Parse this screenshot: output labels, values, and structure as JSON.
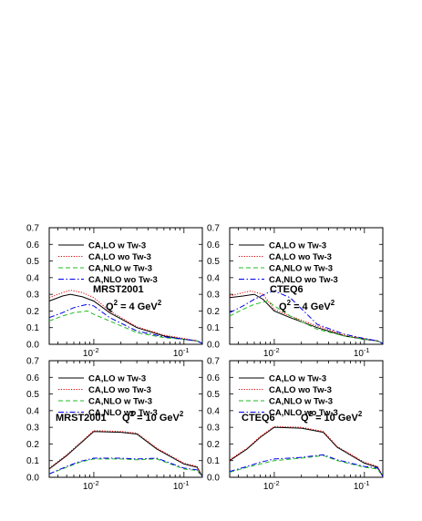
{
  "chart_data": [
    {
      "type": "line",
      "xscale": "log",
      "xlim": [
        0.0032,
        0.16
      ],
      "ylim": [
        0,
        0.7
      ],
      "x_major_ticks": [
        0.01,
        0.1
      ],
      "x_tick_labels": [
        "10",
        "10"
      ],
      "x_tick_exponents": [
        "-2",
        "-1"
      ],
      "y_ticks": [
        0.0,
        0.1,
        0.2,
        0.3,
        0.4,
        0.5,
        0.6,
        0.7
      ],
      "y_tick_labels": [
        "0.0",
        "0.1",
        "0.2",
        "0.3",
        "0.4",
        "0.5",
        "0.6",
        "0.7"
      ],
      "label": "MRST2001",
      "q2_base": "Q",
      "q2_exp": "2",
      "q2_value": "= 4 GeV",
      "q2_unit_exp": "2",
      "legend": [
        "CA,LO w Tw-3",
        "CA,LO wo Tw-3",
        "CA,NLO w Tw-3",
        "CA,NLO wo Tw-3"
      ],
      "series": [
        {
          "name": "CA,LO w Tw-3",
          "color": "#000000",
          "dash": "solid",
          "x": [
            0.0032,
            0.0045,
            0.0055,
            0.0075,
            0.01,
            0.015,
            0.03,
            0.06,
            0.1,
            0.14,
            0.16
          ],
          "y": [
            0.26,
            0.29,
            0.3,
            0.285,
            0.26,
            0.19,
            0.1,
            0.05,
            0.03,
            0.02,
            0.005
          ]
        },
        {
          "name": "CA,LO wo Tw-3",
          "color": "#dd0000",
          "dash": "dotted",
          "x": [
            0.0032,
            0.0045,
            0.0055,
            0.0075,
            0.01,
            0.015,
            0.03,
            0.06,
            0.1,
            0.14,
            0.16
          ],
          "y": [
            0.28,
            0.31,
            0.325,
            0.31,
            0.28,
            0.2,
            0.105,
            0.055,
            0.035,
            0.02,
            0.005
          ]
        },
        {
          "name": "CA,NLO w Tw-3",
          "color": "#22bb22",
          "dash": "dash",
          "x": [
            0.0032,
            0.0045,
            0.006,
            0.0085,
            0.01,
            0.015,
            0.03,
            0.06,
            0.1,
            0.14,
            0.16
          ],
          "y": [
            0.14,
            0.17,
            0.19,
            0.2,
            0.18,
            0.14,
            0.07,
            0.04,
            0.03,
            0.02,
            0.005
          ]
        },
        {
          "name": "CA,NLO wo Tw-3",
          "color": "#0000ee",
          "dash": "dashdot",
          "x": [
            0.0032,
            0.0045,
            0.006,
            0.0085,
            0.01,
            0.015,
            0.03,
            0.06,
            0.1,
            0.14,
            0.16
          ],
          "y": [
            0.16,
            0.19,
            0.22,
            0.24,
            0.23,
            0.16,
            0.08,
            0.045,
            0.03,
            0.02,
            0.005
          ]
        }
      ]
    },
    {
      "type": "line",
      "xscale": "log",
      "xlim": [
        0.0032,
        0.16
      ],
      "ylim": [
        0,
        0.7
      ],
      "x_major_ticks": [
        0.01,
        0.1
      ],
      "x_tick_labels": [
        "10",
        "10"
      ],
      "x_tick_exponents": [
        "-2",
        "-1"
      ],
      "y_ticks": [
        0.0,
        0.1,
        0.2,
        0.3,
        0.4,
        0.5,
        0.6,
        0.7
      ],
      "y_tick_labels": [
        "0.0",
        "0.1",
        "0.2",
        "0.3",
        "0.4",
        "0.5",
        "0.6",
        "0.7"
      ],
      "label": "CTEQ6",
      "q2_base": "Q",
      "q2_exp": "2",
      "q2_value": "= 4 GeV",
      "q2_unit_exp": "2",
      "legend": [
        "CA,LO w Tw-3",
        "CA,LO wo Tw-3",
        "CA,NLO w Tw-3",
        "CA,NLO wo Tw-3"
      ],
      "series": [
        {
          "name": "CA,LO w Tw-3",
          "color": "#000000",
          "dash": "solid",
          "x": [
            0.0032,
            0.0045,
            0.006,
            0.0075,
            0.01,
            0.015,
            0.03,
            0.06,
            0.1,
            0.14,
            0.16
          ],
          "y": [
            0.28,
            0.29,
            0.3,
            0.27,
            0.2,
            0.16,
            0.1,
            0.05,
            0.03,
            0.02,
            0.005
          ]
        },
        {
          "name": "CA,LO wo Tw-3",
          "color": "#dd0000",
          "dash": "dotted",
          "x": [
            0.0032,
            0.0045,
            0.0055,
            0.0075,
            0.01,
            0.015,
            0.03,
            0.06,
            0.1,
            0.14,
            0.16
          ],
          "y": [
            0.29,
            0.31,
            0.32,
            0.3,
            0.21,
            0.17,
            0.11,
            0.055,
            0.035,
            0.02,
            0.005
          ]
        },
        {
          "name": "CA,NLO w Tw-3",
          "color": "#22bb22",
          "dash": "dash",
          "x": [
            0.0032,
            0.0045,
            0.006,
            0.0085,
            0.01,
            0.015,
            0.03,
            0.06,
            0.1,
            0.14,
            0.16
          ],
          "y": [
            0.17,
            0.21,
            0.24,
            0.26,
            0.23,
            0.17,
            0.09,
            0.05,
            0.03,
            0.02,
            0.005
          ]
        },
        {
          "name": "CA,NLO wo Tw-3",
          "color": "#0000ee",
          "dash": "dashdot",
          "x": [
            0.0032,
            0.0045,
            0.006,
            0.0085,
            0.01,
            0.015,
            0.03,
            0.06,
            0.1,
            0.14,
            0.16
          ],
          "y": [
            0.19,
            0.23,
            0.27,
            0.31,
            0.32,
            0.28,
            0.12,
            0.06,
            0.035,
            0.02,
            0.005
          ]
        }
      ]
    },
    {
      "type": "line",
      "xscale": "log",
      "xlim": [
        0.0032,
        0.16
      ],
      "ylim": [
        0,
        0.7
      ],
      "x_major_ticks": [
        0.01,
        0.1
      ],
      "x_tick_labels": [
        "10",
        "10"
      ],
      "x_tick_exponents": [
        "-2",
        "-1"
      ],
      "y_ticks": [
        0.0,
        0.1,
        0.2,
        0.3,
        0.4,
        0.5,
        0.6,
        0.7
      ],
      "y_tick_labels": [
        "0.0",
        "0.1",
        "0.2",
        "0.3",
        "0.4",
        "0.5",
        "0.6",
        "0.7"
      ],
      "label": "MRST2001",
      "q2_base": "Q",
      "q2_exp": "2",
      "q2_value": "= 10 GeV",
      "q2_unit_exp": "2",
      "legend": [
        "CA,LO w Tw-3",
        "CA,LO wo Tw-3",
        "CA,NLO w Tw-3",
        "CA,NLO wo Tw-3"
      ],
      "series": [
        {
          "name": "CA,LO w Tw-3",
          "color": "#000000",
          "dash": "solid",
          "x": [
            0.0032,
            0.005,
            0.007,
            0.01,
            0.02,
            0.03,
            0.05,
            0.1,
            0.14,
            0.16
          ],
          "y": [
            0.05,
            0.13,
            0.2,
            0.275,
            0.27,
            0.26,
            0.17,
            0.08,
            0.06,
            0.005
          ]
        },
        {
          "name": "CA,LO wo Tw-3",
          "color": "#dd0000",
          "dash": "dotted",
          "x": [
            0.0032,
            0.005,
            0.007,
            0.01,
            0.02,
            0.03,
            0.05,
            0.1,
            0.14,
            0.16
          ],
          "y": [
            0.055,
            0.135,
            0.205,
            0.28,
            0.275,
            0.265,
            0.175,
            0.085,
            0.065,
            0.005
          ]
        },
        {
          "name": "CA,NLO w Tw-3",
          "color": "#22bb22",
          "dash": "dash",
          "x": [
            0.0032,
            0.005,
            0.007,
            0.01,
            0.02,
            0.03,
            0.05,
            0.1,
            0.14,
            0.16
          ],
          "y": [
            0.02,
            0.06,
            0.09,
            0.11,
            0.11,
            0.105,
            0.11,
            0.05,
            0.04,
            0.005
          ]
        },
        {
          "name": "CA,NLO wo Tw-3",
          "color": "#0000ee",
          "dash": "dashdot",
          "x": [
            0.0032,
            0.005,
            0.007,
            0.01,
            0.02,
            0.03,
            0.05,
            0.1,
            0.14,
            0.16
          ],
          "y": [
            0.02,
            0.065,
            0.095,
            0.115,
            0.115,
            0.11,
            0.115,
            0.055,
            0.045,
            0.005
          ]
        }
      ]
    },
    {
      "type": "line",
      "xscale": "log",
      "xlim": [
        0.0032,
        0.16
      ],
      "ylim": [
        0,
        0.7
      ],
      "x_major_ticks": [
        0.01,
        0.1
      ],
      "x_tick_labels": [
        "10",
        "10"
      ],
      "x_tick_exponents": [
        "-2",
        "-1"
      ],
      "y_ticks": [
        0.0,
        0.1,
        0.2,
        0.3,
        0.4,
        0.5,
        0.6,
        0.7
      ],
      "y_tick_labels": [
        "0.0",
        "0.1",
        "0.2",
        "0.3",
        "0.4",
        "0.5",
        "0.6",
        "0.7"
      ],
      "label": "CTEQ6",
      "q2_base": "Q",
      "q2_exp": "2",
      "q2_value": "= 10 GeV",
      "q2_unit_exp": "2",
      "legend": [
        "CA,LO w Tw-3",
        "CA,LO wo Tw-3",
        "CA,NLO w Tw-3",
        "CA,NLO wo Tw-3"
      ],
      "series": [
        {
          "name": "CA,LO w Tw-3",
          "color": "#000000",
          "dash": "solid",
          "x": [
            0.0032,
            0.005,
            0.007,
            0.01,
            0.02,
            0.035,
            0.05,
            0.1,
            0.14,
            0.16
          ],
          "y": [
            0.1,
            0.17,
            0.24,
            0.3,
            0.295,
            0.27,
            0.18,
            0.085,
            0.06,
            0.005
          ]
        },
        {
          "name": "CA,LO wo Tw-3",
          "color": "#dd0000",
          "dash": "dotted",
          "x": [
            0.0032,
            0.005,
            0.007,
            0.01,
            0.02,
            0.035,
            0.05,
            0.1,
            0.14,
            0.16
          ],
          "y": [
            0.105,
            0.175,
            0.245,
            0.305,
            0.3,
            0.275,
            0.185,
            0.09,
            0.065,
            0.005
          ]
        },
        {
          "name": "CA,NLO w Tw-3",
          "color": "#22bb22",
          "dash": "dash",
          "x": [
            0.0032,
            0.005,
            0.007,
            0.01,
            0.02,
            0.035,
            0.05,
            0.1,
            0.14,
            0.16
          ],
          "y": [
            0.03,
            0.06,
            0.08,
            0.1,
            0.115,
            0.13,
            0.1,
            0.06,
            0.05,
            0.005
          ]
        },
        {
          "name": "CA,NLO wo Tw-3",
          "color": "#0000ee",
          "dash": "dashdot",
          "x": [
            0.0032,
            0.005,
            0.007,
            0.01,
            0.02,
            0.035,
            0.05,
            0.1,
            0.14,
            0.16
          ],
          "y": [
            0.035,
            0.065,
            0.09,
            0.11,
            0.12,
            0.135,
            0.105,
            0.065,
            0.055,
            0.005
          ]
        }
      ]
    }
  ]
}
